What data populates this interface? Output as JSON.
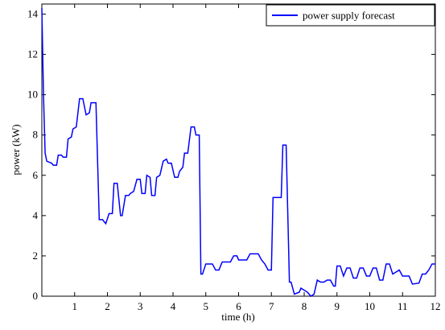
{
  "chart_data": {
    "type": "line",
    "xlabel": "time (h)",
    "ylabel": "power (kW)",
    "xlim": [
      0,
      12
    ],
    "ylim": [
      0,
      14.5
    ],
    "xticks": [
      1,
      2,
      3,
      4,
      5,
      6,
      7,
      8,
      9,
      10,
      11,
      12
    ],
    "yticks": [
      0,
      2,
      4,
      6,
      8,
      10,
      12,
      14
    ],
    "grid": false,
    "legend": "upper right",
    "x": [
      0,
      0.05,
      0.1,
      0.15,
      0.3,
      0.35,
      0.45,
      0.5,
      0.6,
      0.65,
      0.75,
      0.8,
      0.9,
      0.95,
      1.05,
      1.15,
      1.25,
      1.35,
      1.45,
      1.5,
      1.65,
      1.75,
      1.85,
      1.9,
      1.95,
      2.05,
      2.15,
      2.2,
      2.3,
      2.4,
      2.45,
      2.55,
      2.65,
      2.7,
      2.8,
      2.9,
      3.0,
      3.05,
      3.15,
      3.2,
      3.3,
      3.35,
      3.45,
      3.5,
      3.6,
      3.7,
      3.8,
      3.85,
      3.95,
      4.05,
      4.15,
      4.2,
      4.3,
      4.35,
      4.45,
      4.55,
      4.65,
      4.7,
      4.8,
      4.85,
      4.9,
      5.0,
      5.2,
      5.3,
      5.4,
      5.5,
      5.75,
      5.85,
      5.95,
      6.0,
      6.25,
      6.35,
      6.6,
      6.7,
      6.8,
      6.9,
      7.0,
      7.05,
      7.3,
      7.35,
      7.45,
      7.55,
      7.6,
      7.7,
      7.85,
      7.9,
      8.0,
      8.1,
      8.2,
      8.3,
      8.4,
      8.5,
      8.6,
      8.7,
      8.8,
      8.9,
      8.95,
      9.0,
      9.1,
      9.2,
      9.3,
      9.4,
      9.5,
      9.6,
      9.7,
      9.8,
      9.9,
      10.0,
      10.1,
      10.2,
      10.3,
      10.4,
      10.5,
      10.6,
      10.7,
      10.8,
      10.9,
      11.0,
      11.2,
      11.3,
      11.5,
      11.6,
      11.7,
      11.8,
      11.9,
      12.0
    ],
    "series": [
      {
        "name": "power supply forecast",
        "color": "#0000ff",
        "values": [
          14.3,
          10,
          7.1,
          6.7,
          6.6,
          6.5,
          6.5,
          7.0,
          7.0,
          6.9,
          6.9,
          7.8,
          7.9,
          8.3,
          8.4,
          9.8,
          9.8,
          9.0,
          9.1,
          9.6,
          9.6,
          3.8,
          3.8,
          3.7,
          3.6,
          4.1,
          4.1,
          5.6,
          5.6,
          4.0,
          4.0,
          5.0,
          5.0,
          5.1,
          5.2,
          5.8,
          5.8,
          5.1,
          5.1,
          6.0,
          5.9,
          5.0,
          5.0,
          5.9,
          6.0,
          6.7,
          6.8,
          6.6,
          6.6,
          5.9,
          5.9,
          6.2,
          6.4,
          7.1,
          7.1,
          8.4,
          8.4,
          8.0,
          8.0,
          1.1,
          1.1,
          1.6,
          1.6,
          1.3,
          1.3,
          1.7,
          1.7,
          2.0,
          2.0,
          1.8,
          1.8,
          2.1,
          2.1,
          1.8,
          1.6,
          1.3,
          1.3,
          4.9,
          4.9,
          7.5,
          7.5,
          0.7,
          0.7,
          0.1,
          0.2,
          0.4,
          0.3,
          0.2,
          0.0,
          0.1,
          0.8,
          0.7,
          0.7,
          0.8,
          0.8,
          0.5,
          0.5,
          1.5,
          1.5,
          1.0,
          1.4,
          1.4,
          0.9,
          0.9,
          1.4,
          1.4,
          1.0,
          1.0,
          1.4,
          1.4,
          0.8,
          0.8,
          1.6,
          1.6,
          1.1,
          1.2,
          1.3,
          1.0,
          1.0,
          0.6,
          0.65,
          1.1,
          1.1,
          1.3,
          1.6,
          1.6
        ]
      }
    ]
  }
}
